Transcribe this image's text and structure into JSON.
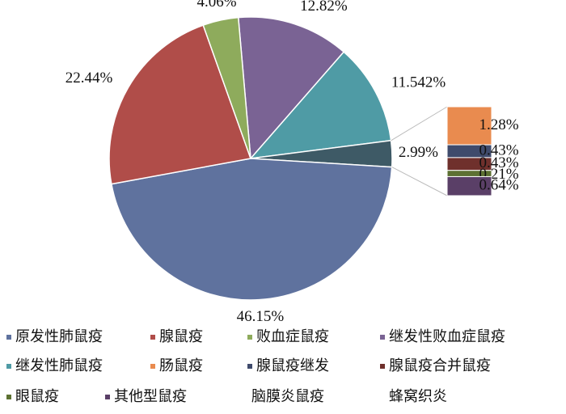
{
  "chart_data": {
    "type": "pie-of-bar",
    "categories": [
      "原发性肺鼠疫",
      "腺鼠疫",
      "败血症鼠疫",
      "继发性败血症鼠疫",
      "继发性肺鼠疫",
      "肠鼠疫",
      "腺鼠疫继发",
      "腺鼠疫合并鼠疫",
      "眼鼠疫",
      "其他型鼠疫",
      "脑膜炎鼠疫",
      "蜂窝织炎"
    ],
    "values": [
      46.15,
      22.44,
      4.06,
      12.82,
      11.542,
      1.28,
      0.43,
      0.43,
      0.21,
      0.64,
      null,
      null
    ],
    "value_labels": [
      "46.15%",
      "22.44%",
      "4.06%",
      "12.82%",
      "11.542%",
      "1.28%",
      "0.43%",
      "0.43%",
      "0.21%",
      "0.64%",
      null,
      null
    ],
    "colors": [
      "#5f729e",
      "#b04d49",
      "#8eab5c",
      "#7a6394",
      "#4f9ba5",
      "#e98b4f",
      "#3f4b6c",
      "#6f302c",
      "#5d7132",
      "#5a3f67",
      "#ffffff",
      "#ffffff"
    ],
    "other_value": 2.99,
    "other_value_label": "2.99%",
    "other_color": "#3e5a66"
  }
}
